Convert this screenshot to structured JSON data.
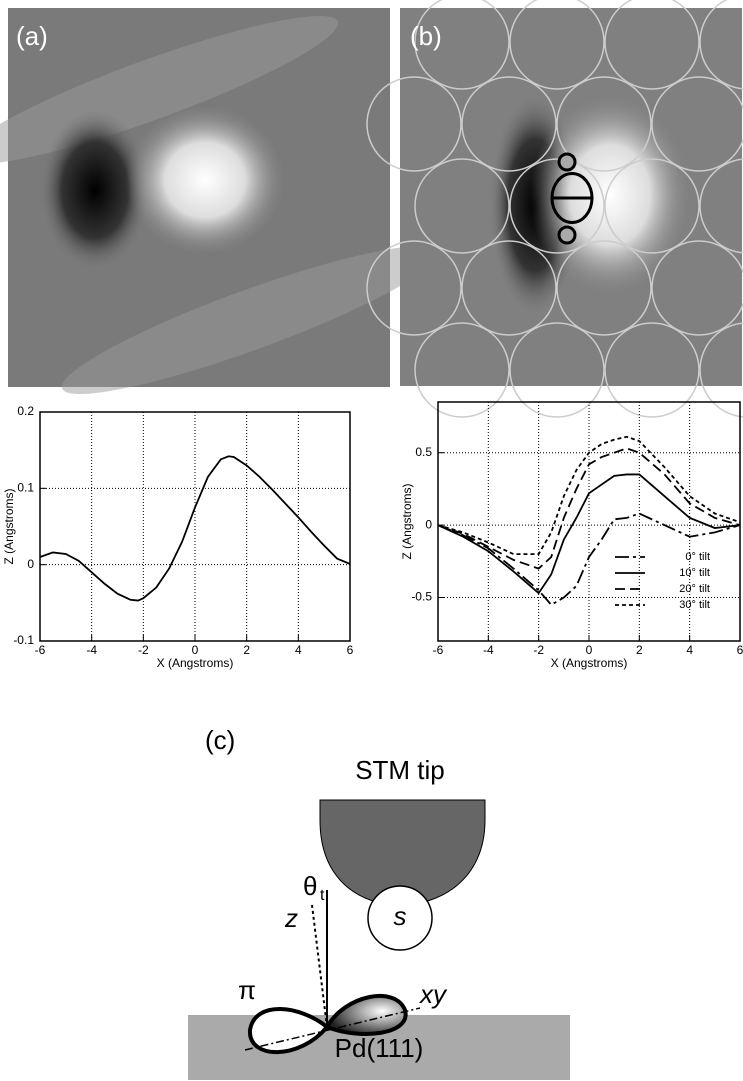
{
  "panels": {
    "a": "(a)",
    "b": "(b)",
    "c": "(c)"
  },
  "chart_data": [
    {
      "type": "line",
      "x_label": "X (Angstroms)",
      "y_label": "Z (Angstroms)",
      "x": [
        -6,
        -5.5,
        -5,
        -4.5,
        -4,
        -3.5,
        -3,
        -2.5,
        -2.2,
        -2,
        -1.5,
        -1,
        -0.5,
        0,
        0.5,
        1,
        1.3,
        1.5,
        2,
        2.5,
        3,
        3.5,
        4,
        4.5,
        5,
        5.5,
        6
      ],
      "values": [
        0.01,
        0.016,
        0.014,
        0.005,
        -0.01,
        -0.025,
        -0.038,
        -0.046,
        -0.047,
        -0.044,
        -0.03,
        -0.005,
        0.03,
        0.075,
        0.115,
        0.138,
        0.142,
        0.141,
        0.13,
        0.115,
        0.098,
        0.08,
        0.062,
        0.043,
        0.025,
        0.008,
        0.001
      ],
      "color": "#000000",
      "xlim": [
        -6,
        6
      ],
      "xticks": [
        -6,
        -4,
        -2,
        0,
        2,
        4,
        6
      ],
      "ylim": [
        -0.1,
        0.2
      ],
      "yticks": [
        -0.1,
        0,
        0.1,
        0.2
      ],
      "grid": true
    },
    {
      "type": "line",
      "x_label": "X (Angstroms)",
      "y_label": "Z (Angstroms)",
      "x": [
        -6,
        -5,
        -4,
        -3,
        -2,
        -1.5,
        -1,
        -0.5,
        0,
        0.5,
        1,
        1.5,
        2,
        3,
        4,
        5,
        6
      ],
      "series": [
        {
          "name": "0° tilt",
          "color": "#000000",
          "dash": "14 4 3 4",
          "values": [
            0,
            -0.07,
            -0.16,
            -0.3,
            -0.45,
            -0.55,
            -0.5,
            -0.42,
            -0.22,
            -0.1,
            0.04,
            0.05,
            0.08,
            0,
            -0.08,
            -0.05,
            0
          ]
        },
        {
          "name": "10° tilt",
          "color": "#000000",
          "dash": "none",
          "values": [
            0,
            -0.08,
            -0.18,
            -0.32,
            -0.47,
            -0.34,
            -0.1,
            0.05,
            0.22,
            0.28,
            0.34,
            0.35,
            0.35,
            0.2,
            0.05,
            -0.02,
            0
          ]
        },
        {
          "name": "20° tilt",
          "color": "#000000",
          "dash": "10 5",
          "values": [
            0,
            -0.06,
            -0.15,
            -0.24,
            -0.3,
            -0.22,
            0.05,
            0.25,
            0.42,
            0.47,
            0.5,
            0.53,
            0.5,
            0.35,
            0.15,
            0.05,
            0
          ]
        },
        {
          "name": "30° tilt",
          "color": "#000000",
          "dash": "4 3",
          "values": [
            0,
            -0.05,
            -0.12,
            -0.2,
            -0.2,
            -0.05,
            0.2,
            0.38,
            0.5,
            0.56,
            0.59,
            0.61,
            0.58,
            0.4,
            0.2,
            0.08,
            0.02
          ]
        }
      ],
      "xlim": [
        -6,
        6
      ],
      "xticks": [
        -6,
        -4,
        -2,
        0,
        2,
        4,
        6
      ],
      "ylim": [
        -0.8,
        0.85
      ],
      "yticks": [
        -0.5,
        0,
        0.5
      ],
      "grid": true,
      "legend": "lower right"
    }
  ],
  "diagram": {
    "tip": "STM tip",
    "s": "s",
    "theta": "θ",
    "theta_sub": "t",
    "z": "z",
    "pi": "π",
    "xy": "xy",
    "surface": "Pd(111)"
  }
}
